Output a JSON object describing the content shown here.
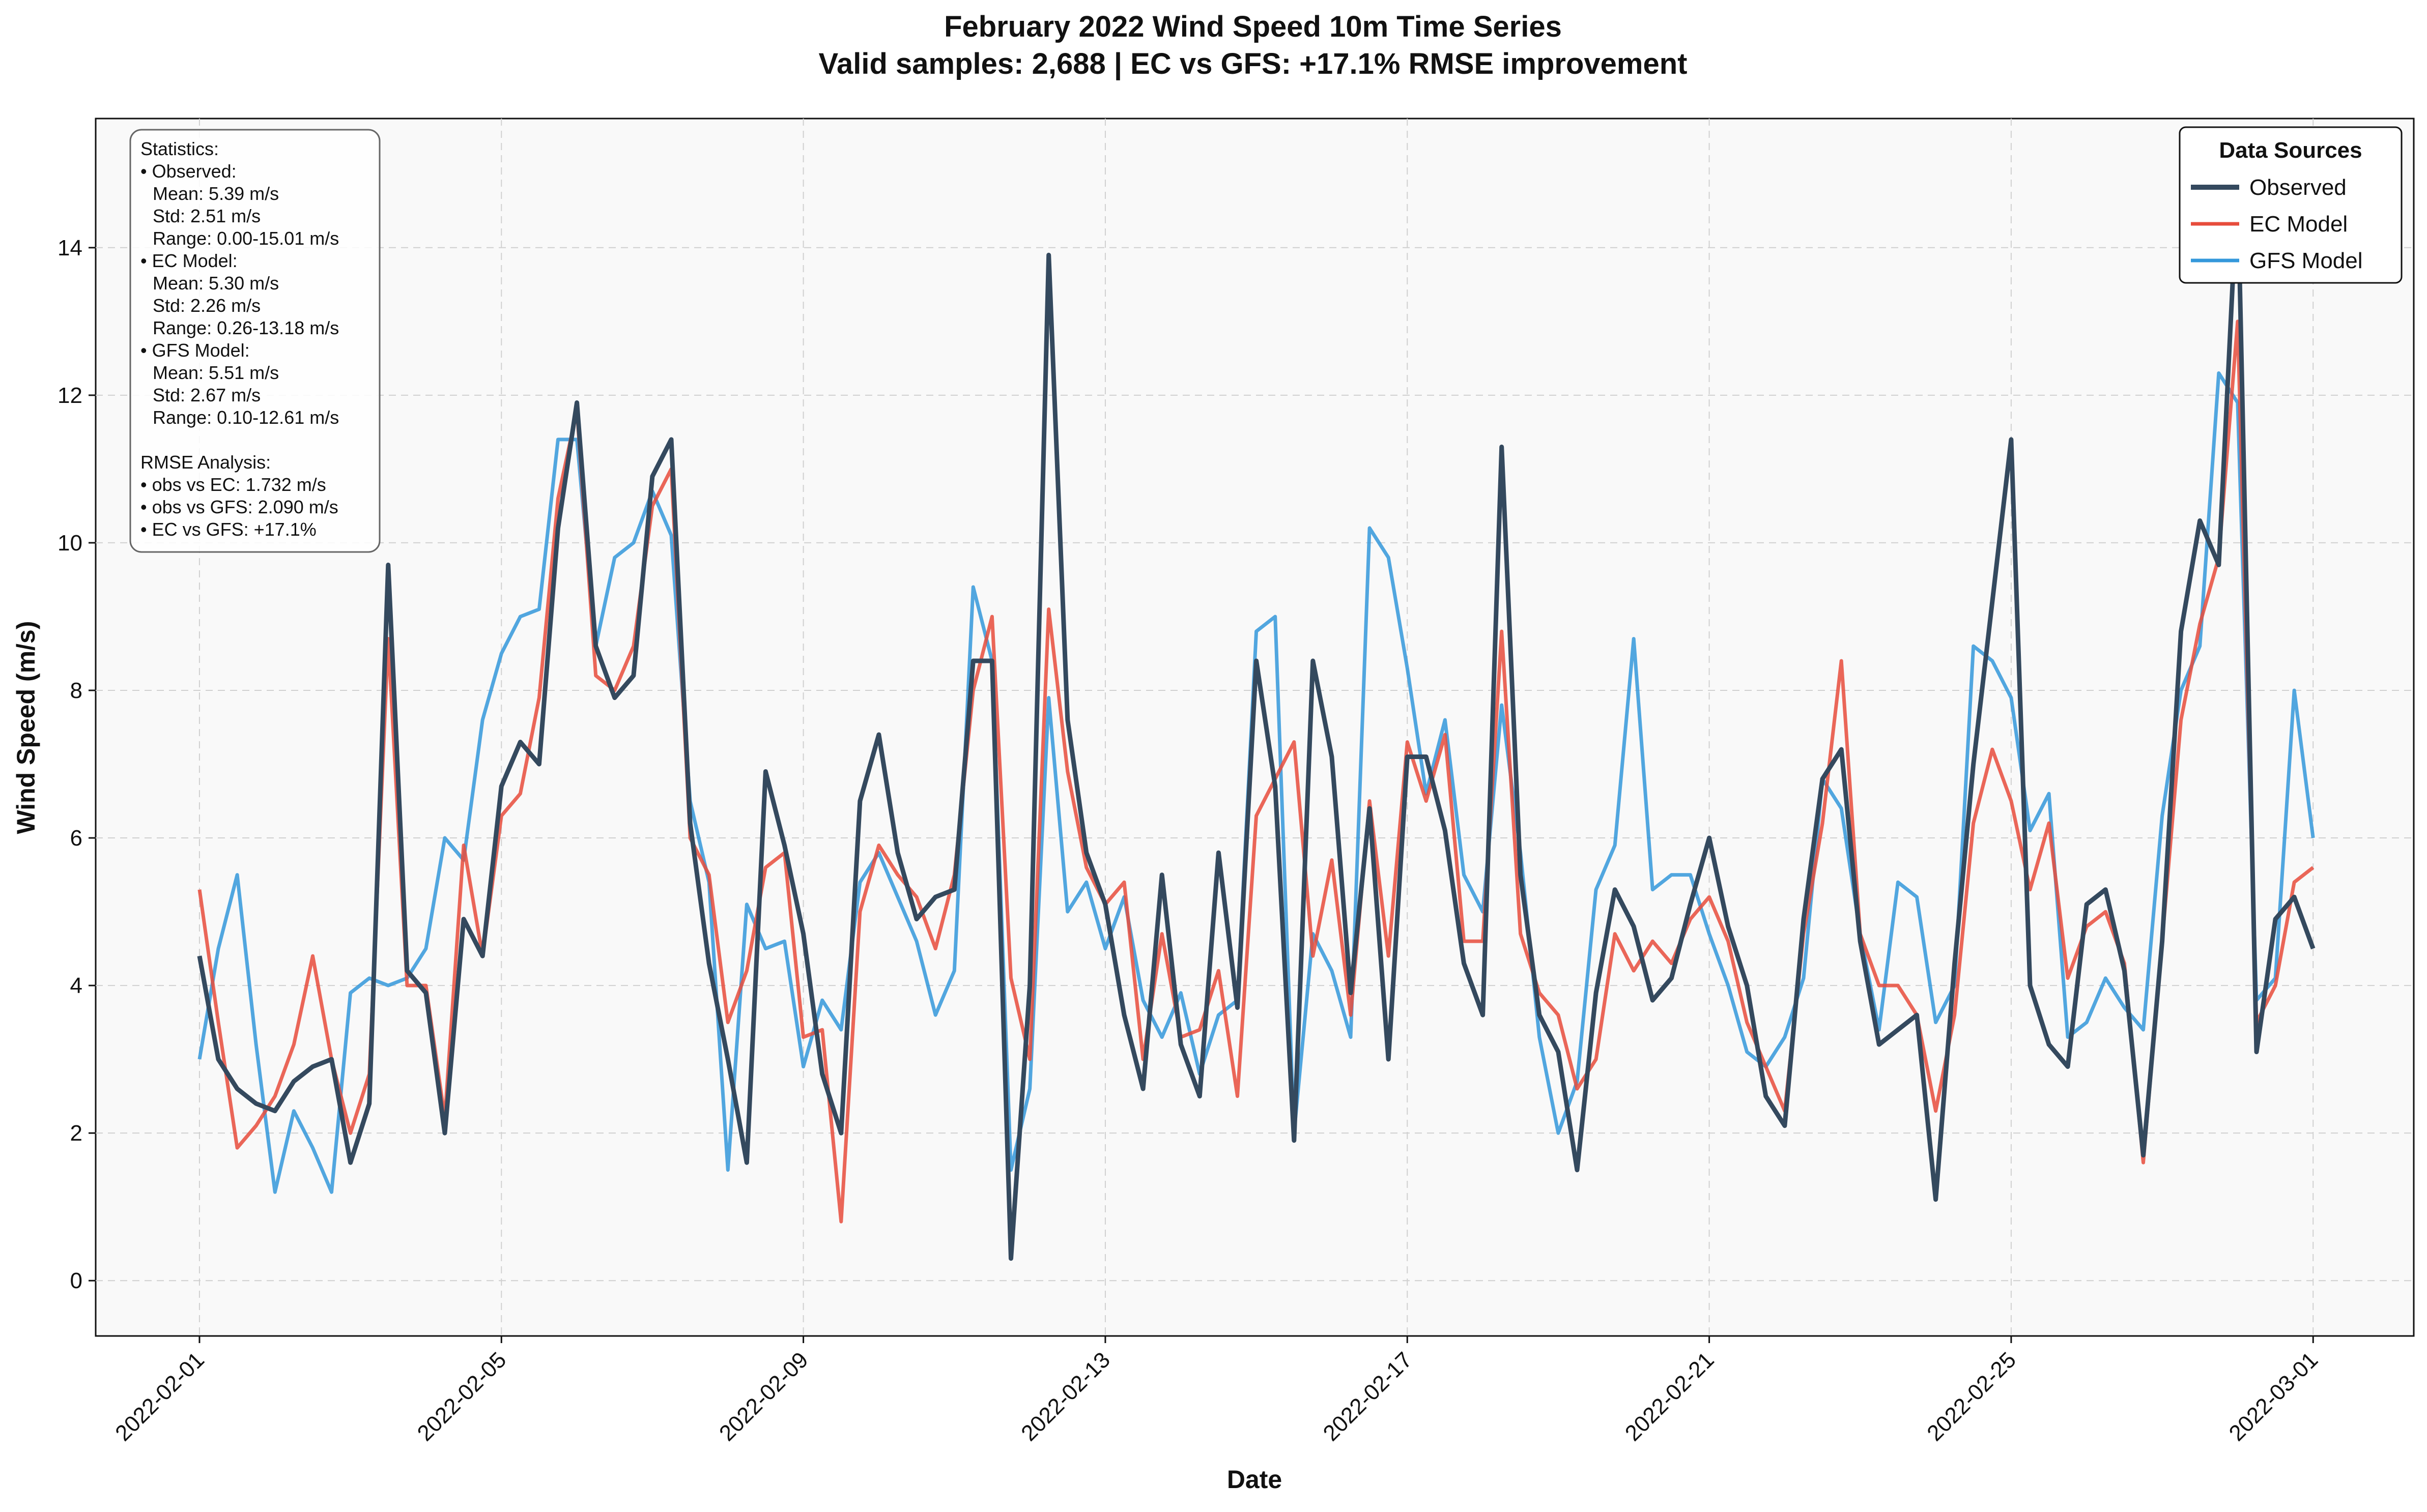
{
  "chart_data": {
    "type": "line",
    "title": "February 2022 Wind Speed 10m Time Series",
    "subtitle": "Valid samples: 2,688 | EC vs GFS: +17.1% RMSE improvement",
    "xlabel": "Date",
    "ylabel": "Wind Speed (m/s)",
    "xlim": [
      "2022-01-30 15:00",
      "2022-03-02 08:00"
    ],
    "ylim": [
      -0.75,
      15.75
    ],
    "x_ticks": [
      "2022-02-01",
      "2022-02-05",
      "2022-02-09",
      "2022-02-13",
      "2022-02-17",
      "2022-02-21",
      "2022-02-25",
      "2022-03-01"
    ],
    "y_ticks": [
      0,
      2,
      4,
      6,
      8,
      10,
      12,
      14
    ],
    "grid": true,
    "legend": {
      "title": "Data Sources",
      "placement": "top-right"
    },
    "x": [
      "2022-02-01 00:00",
      "2022-02-01 06:00",
      "2022-02-01 12:00",
      "2022-02-01 18:00",
      "2022-02-02 00:00",
      "2022-02-02 06:00",
      "2022-02-02 12:00",
      "2022-02-02 18:00",
      "2022-02-03 00:00",
      "2022-02-03 06:00",
      "2022-02-03 12:00",
      "2022-02-03 18:00",
      "2022-02-04 00:00",
      "2022-02-04 06:00",
      "2022-02-04 12:00",
      "2022-02-04 18:00",
      "2022-02-05 00:00",
      "2022-02-05 06:00",
      "2022-02-05 12:00",
      "2022-02-05 18:00",
      "2022-02-06 00:00",
      "2022-02-06 06:00",
      "2022-02-06 12:00",
      "2022-02-06 18:00",
      "2022-02-07 00:00",
      "2022-02-07 06:00",
      "2022-02-07 12:00",
      "2022-02-07 18:00",
      "2022-02-08 00:00",
      "2022-02-08 06:00",
      "2022-02-08 12:00",
      "2022-02-08 18:00",
      "2022-02-09 00:00",
      "2022-02-09 06:00",
      "2022-02-09 12:00",
      "2022-02-09 18:00",
      "2022-02-10 00:00",
      "2022-02-10 06:00",
      "2022-02-10 12:00",
      "2022-02-10 18:00",
      "2022-02-11 00:00",
      "2022-02-11 06:00",
      "2022-02-11 12:00",
      "2022-02-11 18:00",
      "2022-02-12 00:00",
      "2022-02-12 06:00",
      "2022-02-12 12:00",
      "2022-02-12 18:00",
      "2022-02-13 00:00",
      "2022-02-13 06:00",
      "2022-02-13 12:00",
      "2022-02-13 18:00",
      "2022-02-14 00:00",
      "2022-02-14 06:00",
      "2022-02-14 12:00",
      "2022-02-14 18:00",
      "2022-02-15 00:00",
      "2022-02-15 06:00",
      "2022-02-15 12:00",
      "2022-02-15 18:00",
      "2022-02-16 00:00",
      "2022-02-16 06:00",
      "2022-02-16 12:00",
      "2022-02-16 18:00",
      "2022-02-17 00:00",
      "2022-02-17 06:00",
      "2022-02-17 12:00",
      "2022-02-17 18:00",
      "2022-02-18 00:00",
      "2022-02-18 06:00",
      "2022-02-18 12:00",
      "2022-02-18 18:00",
      "2022-02-19 00:00",
      "2022-02-19 06:00",
      "2022-02-19 12:00",
      "2022-02-19 18:00",
      "2022-02-20 00:00",
      "2022-02-20 06:00",
      "2022-02-20 12:00",
      "2022-02-20 18:00",
      "2022-02-21 00:00",
      "2022-02-21 06:00",
      "2022-02-21 12:00",
      "2022-02-21 18:00",
      "2022-02-22 00:00",
      "2022-02-22 06:00",
      "2022-02-22 12:00",
      "2022-02-22 18:00",
      "2022-02-23 00:00",
      "2022-02-23 06:00",
      "2022-02-23 12:00",
      "2022-02-23 18:00",
      "2022-02-24 00:00",
      "2022-02-24 06:00",
      "2022-02-24 12:00",
      "2022-02-24 18:00",
      "2022-02-25 00:00",
      "2022-02-25 06:00",
      "2022-02-25 12:00",
      "2022-02-25 18:00",
      "2022-02-26 00:00",
      "2022-02-26 06:00",
      "2022-02-26 12:00",
      "2022-02-26 18:00",
      "2022-02-27 00:00",
      "2022-02-27 06:00",
      "2022-02-27 12:00",
      "2022-02-27 18:00",
      "2022-02-28 00:00",
      "2022-02-28 06:00",
      "2022-02-28 12:00",
      "2022-02-28 18:00",
      "2022-03-01 00:00"
    ],
    "series": [
      {
        "name": "Observed",
        "color": "#34495e",
        "values": [
          4.4,
          3.0,
          2.6,
          2.4,
          2.3,
          2.7,
          2.9,
          3.0,
          1.6,
          2.4,
          9.7,
          4.2,
          3.9,
          2.0,
          4.9,
          4.4,
          6.7,
          7.3,
          7.0,
          10.2,
          11.9,
          8.6,
          7.9,
          8.2,
          10.9,
          11.4,
          6.2,
          4.3,
          3.0,
          1.6,
          6.9,
          5.9,
          4.7,
          2.8,
          2.0,
          6.5,
          7.4,
          5.8,
          4.9,
          5.2,
          5.3,
          8.4,
          8.4,
          0.3,
          4.0,
          13.9,
          7.6,
          5.8,
          5.1,
          3.6,
          2.6,
          5.5,
          3.2,
          2.5,
          5.8,
          3.7,
          8.4,
          6.7,
          1.9,
          8.4,
          7.1,
          3.9,
          6.4,
          3.0,
          7.1,
          7.1,
          6.1,
          4.3,
          3.6,
          11.3,
          5.5,
          3.6,
          3.1,
          1.5,
          3.9,
          5.3,
          4.8,
          3.8,
          4.1,
          5.1,
          6.0,
          4.8,
          4.0,
          2.5,
          2.1,
          4.9,
          6.8,
          7.2,
          4.6,
          3.2,
          3.4,
          3.6,
          1.1,
          4.3,
          7.0,
          9.2,
          11.4,
          4.0,
          3.2,
          2.9,
          5.1,
          5.3,
          4.2,
          1.7,
          4.6,
          8.8,
          10.3,
          9.7,
          14.9,
          3.1,
          4.9,
          5.2,
          4.5
        ]
      },
      {
        "name": "EC Model",
        "color": "#e74c3c",
        "values": [
          5.3,
          3.5,
          1.8,
          2.1,
          2.5,
          3.2,
          4.4,
          3.0,
          2.0,
          2.8,
          8.7,
          4.0,
          4.0,
          2.2,
          5.9,
          4.4,
          6.3,
          6.6,
          7.9,
          10.6,
          11.8,
          8.2,
          8.0,
          8.6,
          10.5,
          11.0,
          6.0,
          5.5,
          3.5,
          4.2,
          5.6,
          5.8,
          3.3,
          3.4,
          0.8,
          5.0,
          5.9,
          5.5,
          5.2,
          4.5,
          5.5,
          8.0,
          9.0,
          4.1,
          3.0,
          9.1,
          6.9,
          5.6,
          5.1,
          5.4,
          3.0,
          4.7,
          3.3,
          3.4,
          4.2,
          2.5,
          6.3,
          6.8,
          7.3,
          4.4,
          5.7,
          3.6,
          6.5,
          4.4,
          7.3,
          6.5,
          7.4,
          4.6,
          4.6,
          8.8,
          4.7,
          3.9,
          3.6,
          2.6,
          3.0,
          4.7,
          4.2,
          4.6,
          4.3,
          4.9,
          5.2,
          4.6,
          3.5,
          2.9,
          2.3,
          4.7,
          6.2,
          8.4,
          4.7,
          4.0,
          4.0,
          3.6,
          2.3,
          3.6,
          6.2,
          7.2,
          6.5,
          5.3,
          6.2,
          4.1,
          4.8,
          5.0,
          4.3,
          1.6,
          4.6,
          7.6,
          8.9,
          9.8,
          13.0,
          3.5,
          4.0,
          5.4,
          5.6
        ]
      },
      {
        "name": "GFS Model",
        "color": "#3498db",
        "values": [
          3.0,
          4.5,
          5.5,
          3.2,
          1.2,
          2.3,
          1.8,
          1.2,
          3.9,
          4.1,
          4.0,
          4.1,
          4.5,
          6.0,
          5.7,
          7.6,
          8.5,
          9.0,
          9.1,
          11.4,
          11.4,
          8.6,
          9.8,
          10.0,
          10.7,
          10.1,
          6.5,
          5.4,
          1.5,
          5.1,
          4.5,
          4.6,
          2.9,
          3.8,
          3.4,
          5.4,
          5.8,
          5.2,
          4.6,
          3.6,
          4.2,
          9.4,
          8.4,
          1.5,
          2.6,
          7.9,
          5.0,
          5.4,
          4.5,
          5.2,
          3.8,
          3.3,
          3.9,
          2.8,
          3.6,
          3.8,
          8.8,
          9.0,
          2.0,
          4.7,
          4.2,
          3.3,
          10.2,
          9.8,
          8.3,
          6.6,
          7.6,
          5.5,
          5.0,
          7.8,
          5.8,
          3.3,
          2.0,
          2.7,
          5.3,
          5.9,
          8.7,
          5.3,
          5.5,
          5.5,
          4.7,
          4.0,
          3.1,
          2.9,
          3.3,
          4.1,
          6.8,
          6.4,
          4.7,
          3.4,
          5.4,
          5.2,
          3.5,
          4.0,
          8.6,
          8.4,
          7.9,
          6.1,
          6.6,
          3.3,
          3.5,
          4.1,
          3.7,
          3.4,
          6.3,
          8.0,
          8.6,
          12.3,
          11.9,
          3.8,
          4.1,
          8.0,
          6.0
        ]
      }
    ]
  },
  "stats_box": {
    "header": "Statistics:",
    "obs_label": "• Observed:",
    "obs_mean": "Mean: 5.39 m/s",
    "obs_std": "Std: 2.51 m/s",
    "obs_range": "Range: 0.00-15.01 m/s",
    "ec_label": "• EC Model:",
    "ec_mean": "Mean: 5.30 m/s",
    "ec_std": "Std: 2.26 m/s",
    "ec_range": "Range: 0.26-13.18 m/s",
    "gfs_label": "• GFS Model:",
    "gfs_mean": "Mean: 5.51 m/s",
    "gfs_std": "Std: 2.67 m/s",
    "gfs_range": "Range: 0.10-12.61 m/s",
    "rmse_header": "RMSE Analysis:",
    "rmse_obs_ec": "• obs vs EC: 1.732 m/s",
    "rmse_obs_gfs": "• obs vs GFS: 2.090 m/s",
    "rmse_ec_gfs": "• EC vs GFS: +17.1%"
  }
}
